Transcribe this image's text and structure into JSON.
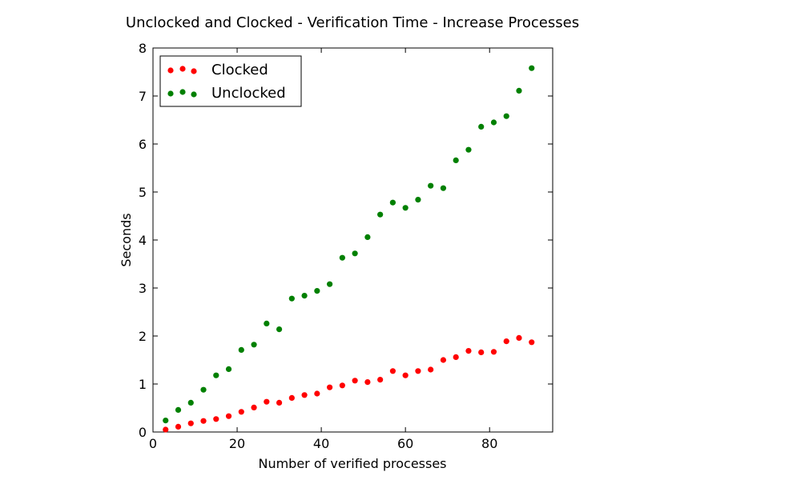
{
  "chart_data": {
    "type": "scatter",
    "title": "Unclocked and Clocked - Verification Time - Increase Processes",
    "xlabel": "Number of verified processes",
    "ylabel": "Seconds",
    "xlim": [
      0,
      95
    ],
    "ylim": [
      0,
      8
    ],
    "xticks": [
      0,
      20,
      40,
      60,
      80
    ],
    "xtick_labels": [
      "0",
      "20",
      "40",
      "60",
      "80"
    ],
    "yticks": [
      0,
      1,
      2,
      3,
      4,
      5,
      6,
      7,
      8
    ],
    "ytick_labels": [
      "0",
      "1",
      "2",
      "3",
      "4",
      "5",
      "6",
      "7",
      "8"
    ],
    "grid": false,
    "legend_position": "top-left",
    "series": [
      {
        "name": "Clocked",
        "color": "#ff0000",
        "x": [
          3,
          6,
          9,
          12,
          15,
          18,
          21,
          24,
          27,
          30,
          33,
          36,
          39,
          42,
          45,
          48,
          51,
          54,
          57,
          60,
          63,
          66,
          69,
          72,
          75,
          78,
          81,
          84,
          87,
          90
        ],
        "y": [
          0.05,
          0.11,
          0.18,
          0.23,
          0.27,
          0.33,
          0.42,
          0.51,
          0.63,
          0.61,
          0.71,
          0.77,
          0.8,
          0.93,
          0.97,
          1.07,
          1.04,
          1.09,
          1.27,
          1.18,
          1.27,
          1.3,
          1.5,
          1.56,
          1.69,
          1.66,
          1.67,
          1.89,
          1.96,
          1.87
        ]
      },
      {
        "name": "Unclocked",
        "color": "#008000",
        "x": [
          3,
          6,
          9,
          12,
          15,
          18,
          21,
          24,
          27,
          30,
          33,
          36,
          39,
          42,
          45,
          48,
          51,
          54,
          57,
          60,
          63,
          66,
          69,
          72,
          75,
          78,
          81,
          84,
          87,
          90
        ],
        "y": [
          0.24,
          0.46,
          0.61,
          0.88,
          1.18,
          1.31,
          1.71,
          1.82,
          2.26,
          2.14,
          2.78,
          2.84,
          2.94,
          3.08,
          3.63,
          3.72,
          4.06,
          4.53,
          4.78,
          4.67,
          4.84,
          5.13,
          5.08,
          5.66,
          5.88,
          6.36,
          6.45,
          6.58,
          7.11,
          7.58
        ]
      }
    ]
  }
}
